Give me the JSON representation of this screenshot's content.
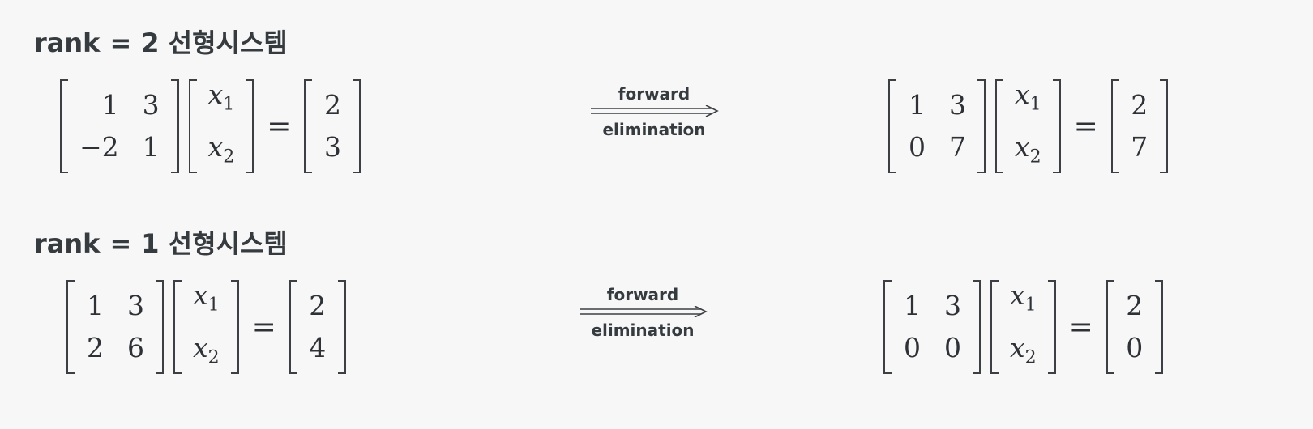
{
  "sections": [
    {
      "heading": {
        "prefix": "rank",
        "eq": "=",
        "value": "2",
        "suffix": "선형시스템"
      },
      "original": {
        "A": [
          [
            "1",
            "3"
          ],
          [
            "−2",
            "1"
          ]
        ],
        "x": [
          "x",
          "x"
        ],
        "x_subs": [
          "1",
          "2"
        ],
        "b": [
          "2",
          "3"
        ]
      },
      "arrow": {
        "top": "forward",
        "bottom": "elimination"
      },
      "reduced": {
        "A": [
          [
            "1",
            "3"
          ],
          [
            "0",
            "7"
          ]
        ],
        "x": [
          "x",
          "x"
        ],
        "x_subs": [
          "1",
          "2"
        ],
        "b": [
          "2",
          "7"
        ]
      },
      "equals_sign": "="
    },
    {
      "heading": {
        "prefix": "rank",
        "eq": "=",
        "value": "1",
        "suffix": "선형시스템"
      },
      "original": {
        "A": [
          [
            "1",
            "3"
          ],
          [
            "2",
            "6"
          ]
        ],
        "x": [
          "x",
          "x"
        ],
        "x_subs": [
          "1",
          "2"
        ],
        "b": [
          "2",
          "4"
        ]
      },
      "arrow": {
        "top": "forward",
        "bottom": "elimination"
      },
      "reduced": {
        "A": [
          [
            "1",
            "3"
          ],
          [
            "0",
            "0"
          ]
        ],
        "x": [
          "x",
          "x"
        ],
        "x_subs": [
          "1",
          "2"
        ],
        "b": [
          "2",
          "0"
        ]
      },
      "equals_sign": "="
    }
  ]
}
